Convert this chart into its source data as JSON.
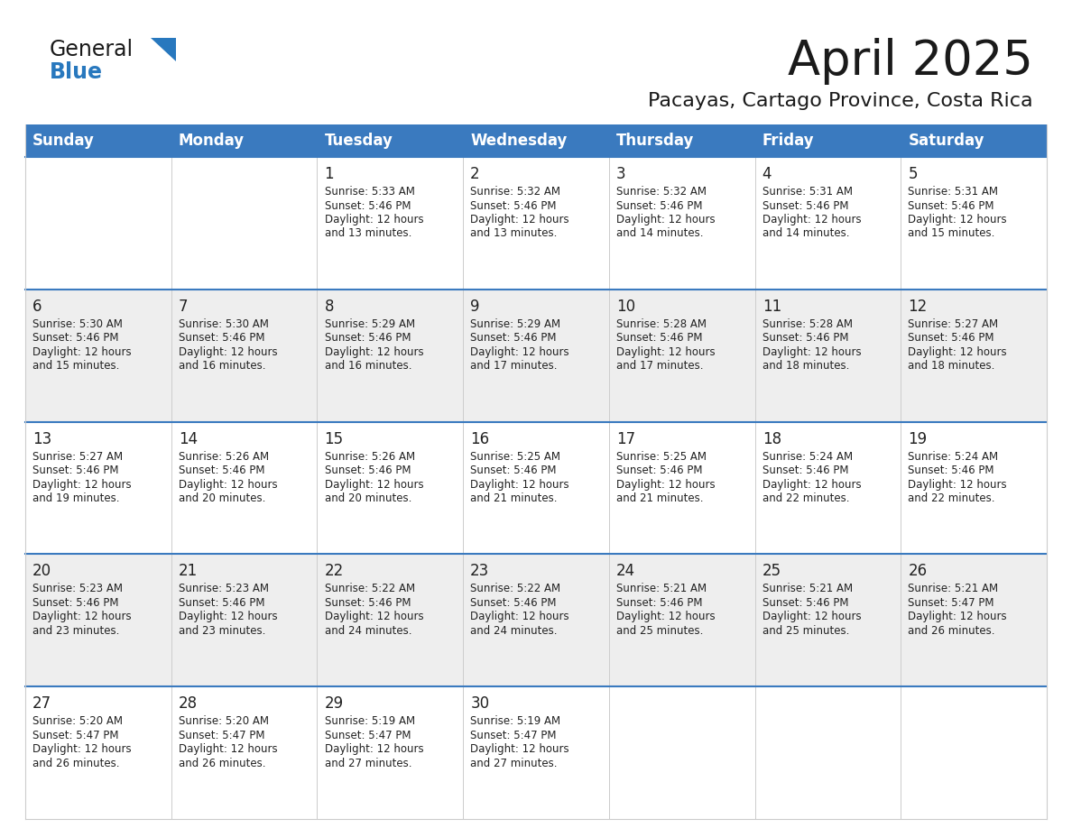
{
  "title": "April 2025",
  "subtitle": "Pacayas, Cartago Province, Costa Rica",
  "days_of_week": [
    "Sunday",
    "Monday",
    "Tuesday",
    "Wednesday",
    "Thursday",
    "Friday",
    "Saturday"
  ],
  "header_bg": "#3a7abf",
  "header_text": "#ffffff",
  "row_bg_1": "#ffffff",
  "row_bg_2": "#eeeeee",
  "cell_border_color": "#cccccc",
  "row_divider_color": "#3a7abf",
  "text_color": "#222222",
  "title_color": "#1a1a1a",
  "subtitle_color": "#1a1a1a",
  "logo_general_color": "#1a1a1a",
  "logo_blue_color": "#2878be",
  "fig_bg": "#ffffff",
  "weeks": [
    [
      {
        "day": "",
        "sunrise": "",
        "sunset": "",
        "daylight": ""
      },
      {
        "day": "",
        "sunrise": "",
        "sunset": "",
        "daylight": ""
      },
      {
        "day": "1",
        "sunrise": "5:33 AM",
        "sunset": "5:46 PM",
        "daylight": "12 hours and 13 minutes."
      },
      {
        "day": "2",
        "sunrise": "5:32 AM",
        "sunset": "5:46 PM",
        "daylight": "12 hours and 13 minutes."
      },
      {
        "day": "3",
        "sunrise": "5:32 AM",
        "sunset": "5:46 PM",
        "daylight": "12 hours and 14 minutes."
      },
      {
        "day": "4",
        "sunrise": "5:31 AM",
        "sunset": "5:46 PM",
        "daylight": "12 hours and 14 minutes."
      },
      {
        "day": "5",
        "sunrise": "5:31 AM",
        "sunset": "5:46 PM",
        "daylight": "12 hours and 15 minutes."
      }
    ],
    [
      {
        "day": "6",
        "sunrise": "5:30 AM",
        "sunset": "5:46 PM",
        "daylight": "12 hours and 15 minutes."
      },
      {
        "day": "7",
        "sunrise": "5:30 AM",
        "sunset": "5:46 PM",
        "daylight": "12 hours and 16 minutes."
      },
      {
        "day": "8",
        "sunrise": "5:29 AM",
        "sunset": "5:46 PM",
        "daylight": "12 hours and 16 minutes."
      },
      {
        "day": "9",
        "sunrise": "5:29 AM",
        "sunset": "5:46 PM",
        "daylight": "12 hours and 17 minutes."
      },
      {
        "day": "10",
        "sunrise": "5:28 AM",
        "sunset": "5:46 PM",
        "daylight": "12 hours and 17 minutes."
      },
      {
        "day": "11",
        "sunrise": "5:28 AM",
        "sunset": "5:46 PM",
        "daylight": "12 hours and 18 minutes."
      },
      {
        "day": "12",
        "sunrise": "5:27 AM",
        "sunset": "5:46 PM",
        "daylight": "12 hours and 18 minutes."
      }
    ],
    [
      {
        "day": "13",
        "sunrise": "5:27 AM",
        "sunset": "5:46 PM",
        "daylight": "12 hours and 19 minutes."
      },
      {
        "day": "14",
        "sunrise": "5:26 AM",
        "sunset": "5:46 PM",
        "daylight": "12 hours and 20 minutes."
      },
      {
        "day": "15",
        "sunrise": "5:26 AM",
        "sunset": "5:46 PM",
        "daylight": "12 hours and 20 minutes."
      },
      {
        "day": "16",
        "sunrise": "5:25 AM",
        "sunset": "5:46 PM",
        "daylight": "12 hours and 21 minutes."
      },
      {
        "day": "17",
        "sunrise": "5:25 AM",
        "sunset": "5:46 PM",
        "daylight": "12 hours and 21 minutes."
      },
      {
        "day": "18",
        "sunrise": "5:24 AM",
        "sunset": "5:46 PM",
        "daylight": "12 hours and 22 minutes."
      },
      {
        "day": "19",
        "sunrise": "5:24 AM",
        "sunset": "5:46 PM",
        "daylight": "12 hours and 22 minutes."
      }
    ],
    [
      {
        "day": "20",
        "sunrise": "5:23 AM",
        "sunset": "5:46 PM",
        "daylight": "12 hours and 23 minutes."
      },
      {
        "day": "21",
        "sunrise": "5:23 AM",
        "sunset": "5:46 PM",
        "daylight": "12 hours and 23 minutes."
      },
      {
        "day": "22",
        "sunrise": "5:22 AM",
        "sunset": "5:46 PM",
        "daylight": "12 hours and 24 minutes."
      },
      {
        "day": "23",
        "sunrise": "5:22 AM",
        "sunset": "5:46 PM",
        "daylight": "12 hours and 24 minutes."
      },
      {
        "day": "24",
        "sunrise": "5:21 AM",
        "sunset": "5:46 PM",
        "daylight": "12 hours and 25 minutes."
      },
      {
        "day": "25",
        "sunrise": "5:21 AM",
        "sunset": "5:46 PM",
        "daylight": "12 hours and 25 minutes."
      },
      {
        "day": "26",
        "sunrise": "5:21 AM",
        "sunset": "5:47 PM",
        "daylight": "12 hours and 26 minutes."
      }
    ],
    [
      {
        "day": "27",
        "sunrise": "5:20 AM",
        "sunset": "5:47 PM",
        "daylight": "12 hours and 26 minutes."
      },
      {
        "day": "28",
        "sunrise": "5:20 AM",
        "sunset": "5:47 PM",
        "daylight": "12 hours and 26 minutes."
      },
      {
        "day": "29",
        "sunrise": "5:19 AM",
        "sunset": "5:47 PM",
        "daylight": "12 hours and 27 minutes."
      },
      {
        "day": "30",
        "sunrise": "5:19 AM",
        "sunset": "5:47 PM",
        "daylight": "12 hours and 27 minutes."
      },
      {
        "day": "",
        "sunrise": "",
        "sunset": "",
        "daylight": ""
      },
      {
        "day": "",
        "sunrise": "",
        "sunset": "",
        "daylight": ""
      },
      {
        "day": "",
        "sunrise": "",
        "sunset": "",
        "daylight": ""
      }
    ]
  ]
}
